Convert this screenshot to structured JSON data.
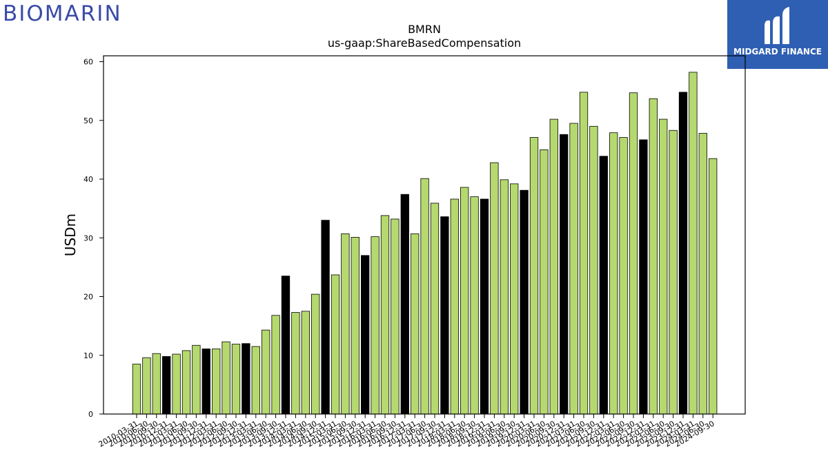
{
  "logos": {
    "left": {
      "text": "BIOMARIN",
      "color": "#3a4aa8"
    },
    "right": {
      "text": "MIDGARD FINANCE",
      "background": "#2f5fb3"
    }
  },
  "chart_data": {
    "type": "bar",
    "title": "BMRN",
    "subtitle": "us-gaap:ShareBasedCompensation",
    "ylabel": "USDm",
    "xlabel": "",
    "ylim": [
      0,
      61
    ],
    "yticks": [
      0,
      10,
      20,
      30,
      40,
      50,
      60
    ],
    "grid": false,
    "colors": {
      "default": "#b5d96e",
      "highlight": "#000000",
      "edge": "#000000"
    },
    "categories": [
      "2010-03-31",
      "2010-06-30",
      "2010-09-30",
      "2010-12-31",
      "2011-03-31",
      "2011-06-30",
      "2011-09-30",
      "2011-12-31",
      "2012-03-31",
      "2012-06-30",
      "2012-09-30",
      "2012-12-31",
      "2013-03-31",
      "2013-06-30",
      "2013-09-30",
      "2013-12-31",
      "2014-03-31",
      "2014-06-30",
      "2014-09-30",
      "2014-12-31",
      "2015-03-31",
      "2015-06-30",
      "2015-09-30",
      "2015-12-31",
      "2016-03-31",
      "2016-06-30",
      "2016-09-30",
      "2016-12-31",
      "2017-03-31",
      "2017-06-30",
      "2017-09-30",
      "2017-12-31",
      "2018-03-31",
      "2018-06-30",
      "2018-09-30",
      "2018-12-31",
      "2019-03-31",
      "2019-06-30",
      "2019-09-30",
      "2019-12-31",
      "2020-03-31",
      "2020-06-30",
      "2020-09-30",
      "2020-12-31",
      "2021-03-31",
      "2021-06-30",
      "2021-09-30",
      "2021-12-31",
      "2022-03-31",
      "2022-06-30",
      "2022-09-30",
      "2022-12-31",
      "2023-03-31",
      "2023-06-30",
      "2023-09-30",
      "2023-12-31",
      "2024-03-31",
      "2024-06-30",
      "2024-09-30"
    ],
    "values": [
      8.5,
      9.6,
      10.3,
      9.8,
      10.2,
      10.8,
      11.7,
      11.1,
      11.1,
      12.3,
      11.9,
      12.0,
      11.5,
      14.3,
      16.8,
      23.5,
      17.3,
      17.5,
      20.4,
      33.0,
      23.7,
      30.7,
      30.1,
      27.0,
      30.2,
      33.8,
      33.2,
      37.4,
      30.7,
      40.1,
      35.9,
      33.6,
      36.6,
      38.6,
      37.0,
      36.6,
      42.8,
      39.9,
      39.2,
      38.1,
      47.1,
      45.0,
      50.2,
      47.6,
      49.5,
      54.8,
      49.0,
      43.9,
      47.9,
      47.1,
      54.7,
      46.7,
      53.7,
      50.2,
      48.3,
      54.8,
      58.2,
      47.8,
      43.5
    ],
    "highlight": [
      false,
      false,
      false,
      true,
      false,
      false,
      false,
      true,
      false,
      false,
      false,
      true,
      false,
      false,
      false,
      true,
      false,
      false,
      false,
      true,
      false,
      false,
      false,
      true,
      false,
      false,
      false,
      true,
      false,
      false,
      false,
      true,
      false,
      false,
      false,
      true,
      false,
      false,
      false,
      true,
      false,
      false,
      false,
      true,
      false,
      false,
      false,
      true,
      false,
      false,
      false,
      true,
      false,
      false,
      false,
      true,
      false,
      false,
      false
    ]
  }
}
